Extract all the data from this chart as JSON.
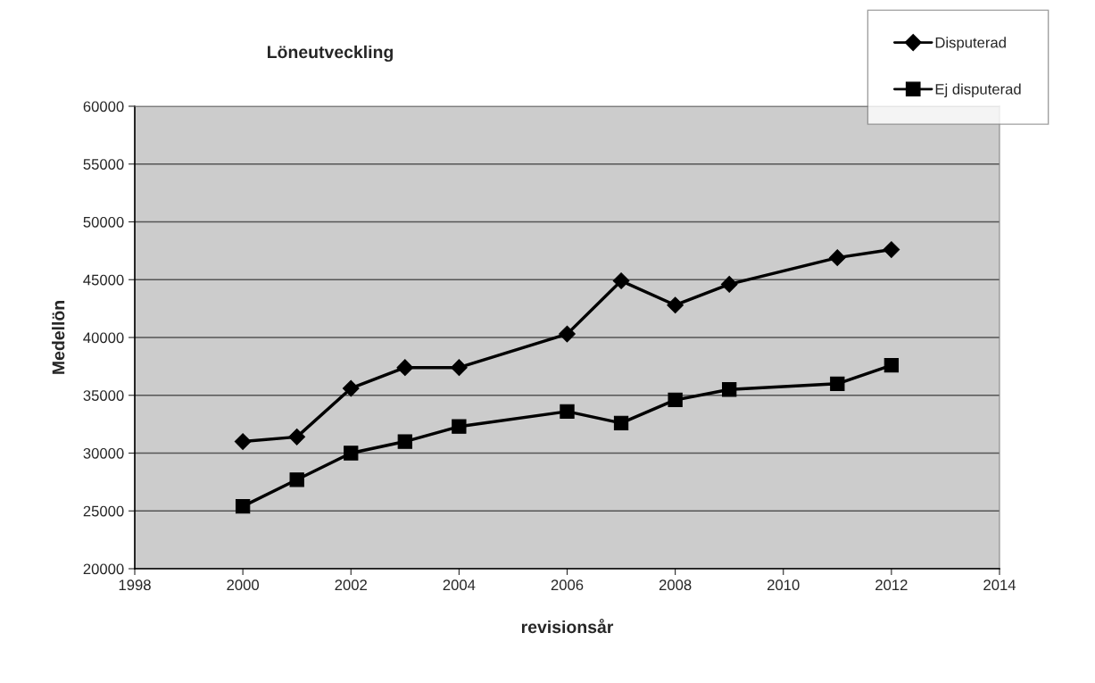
{
  "chart_data": {
    "type": "line",
    "title": "Löneutveckling",
    "xlabel": "revisionsår",
    "ylabel": "Medellön",
    "x": [
      2000,
      2001,
      2002,
      2003,
      2004,
      2006,
      2007,
      2008,
      2009,
      2011,
      2012
    ],
    "series": [
      {
        "name": "Disputerad",
        "color": "#000000",
        "marker": "diamond",
        "values": [
          31000,
          31400,
          35600,
          37400,
          37400,
          40300,
          44900,
          42800,
          44600,
          46900,
          47600
        ]
      },
      {
        "name": "Ej disputerad",
        "color": "#000000",
        "marker": "square",
        "values": [
          25400,
          27700,
          30000,
          31000,
          32300,
          33600,
          32600,
          34600,
          35500,
          36000,
          37600
        ]
      }
    ],
    "xlim": [
      1998,
      2014
    ],
    "xticks": [
      1998,
      2000,
      2002,
      2004,
      2006,
      2008,
      2010,
      2012,
      2014
    ],
    "ylim": [
      20000,
      60000
    ],
    "yticks": [
      20000,
      25000,
      30000,
      35000,
      40000,
      45000,
      50000,
      55000,
      60000
    ],
    "grid": "y",
    "legend": "top right",
    "line_style": "solid"
  }
}
